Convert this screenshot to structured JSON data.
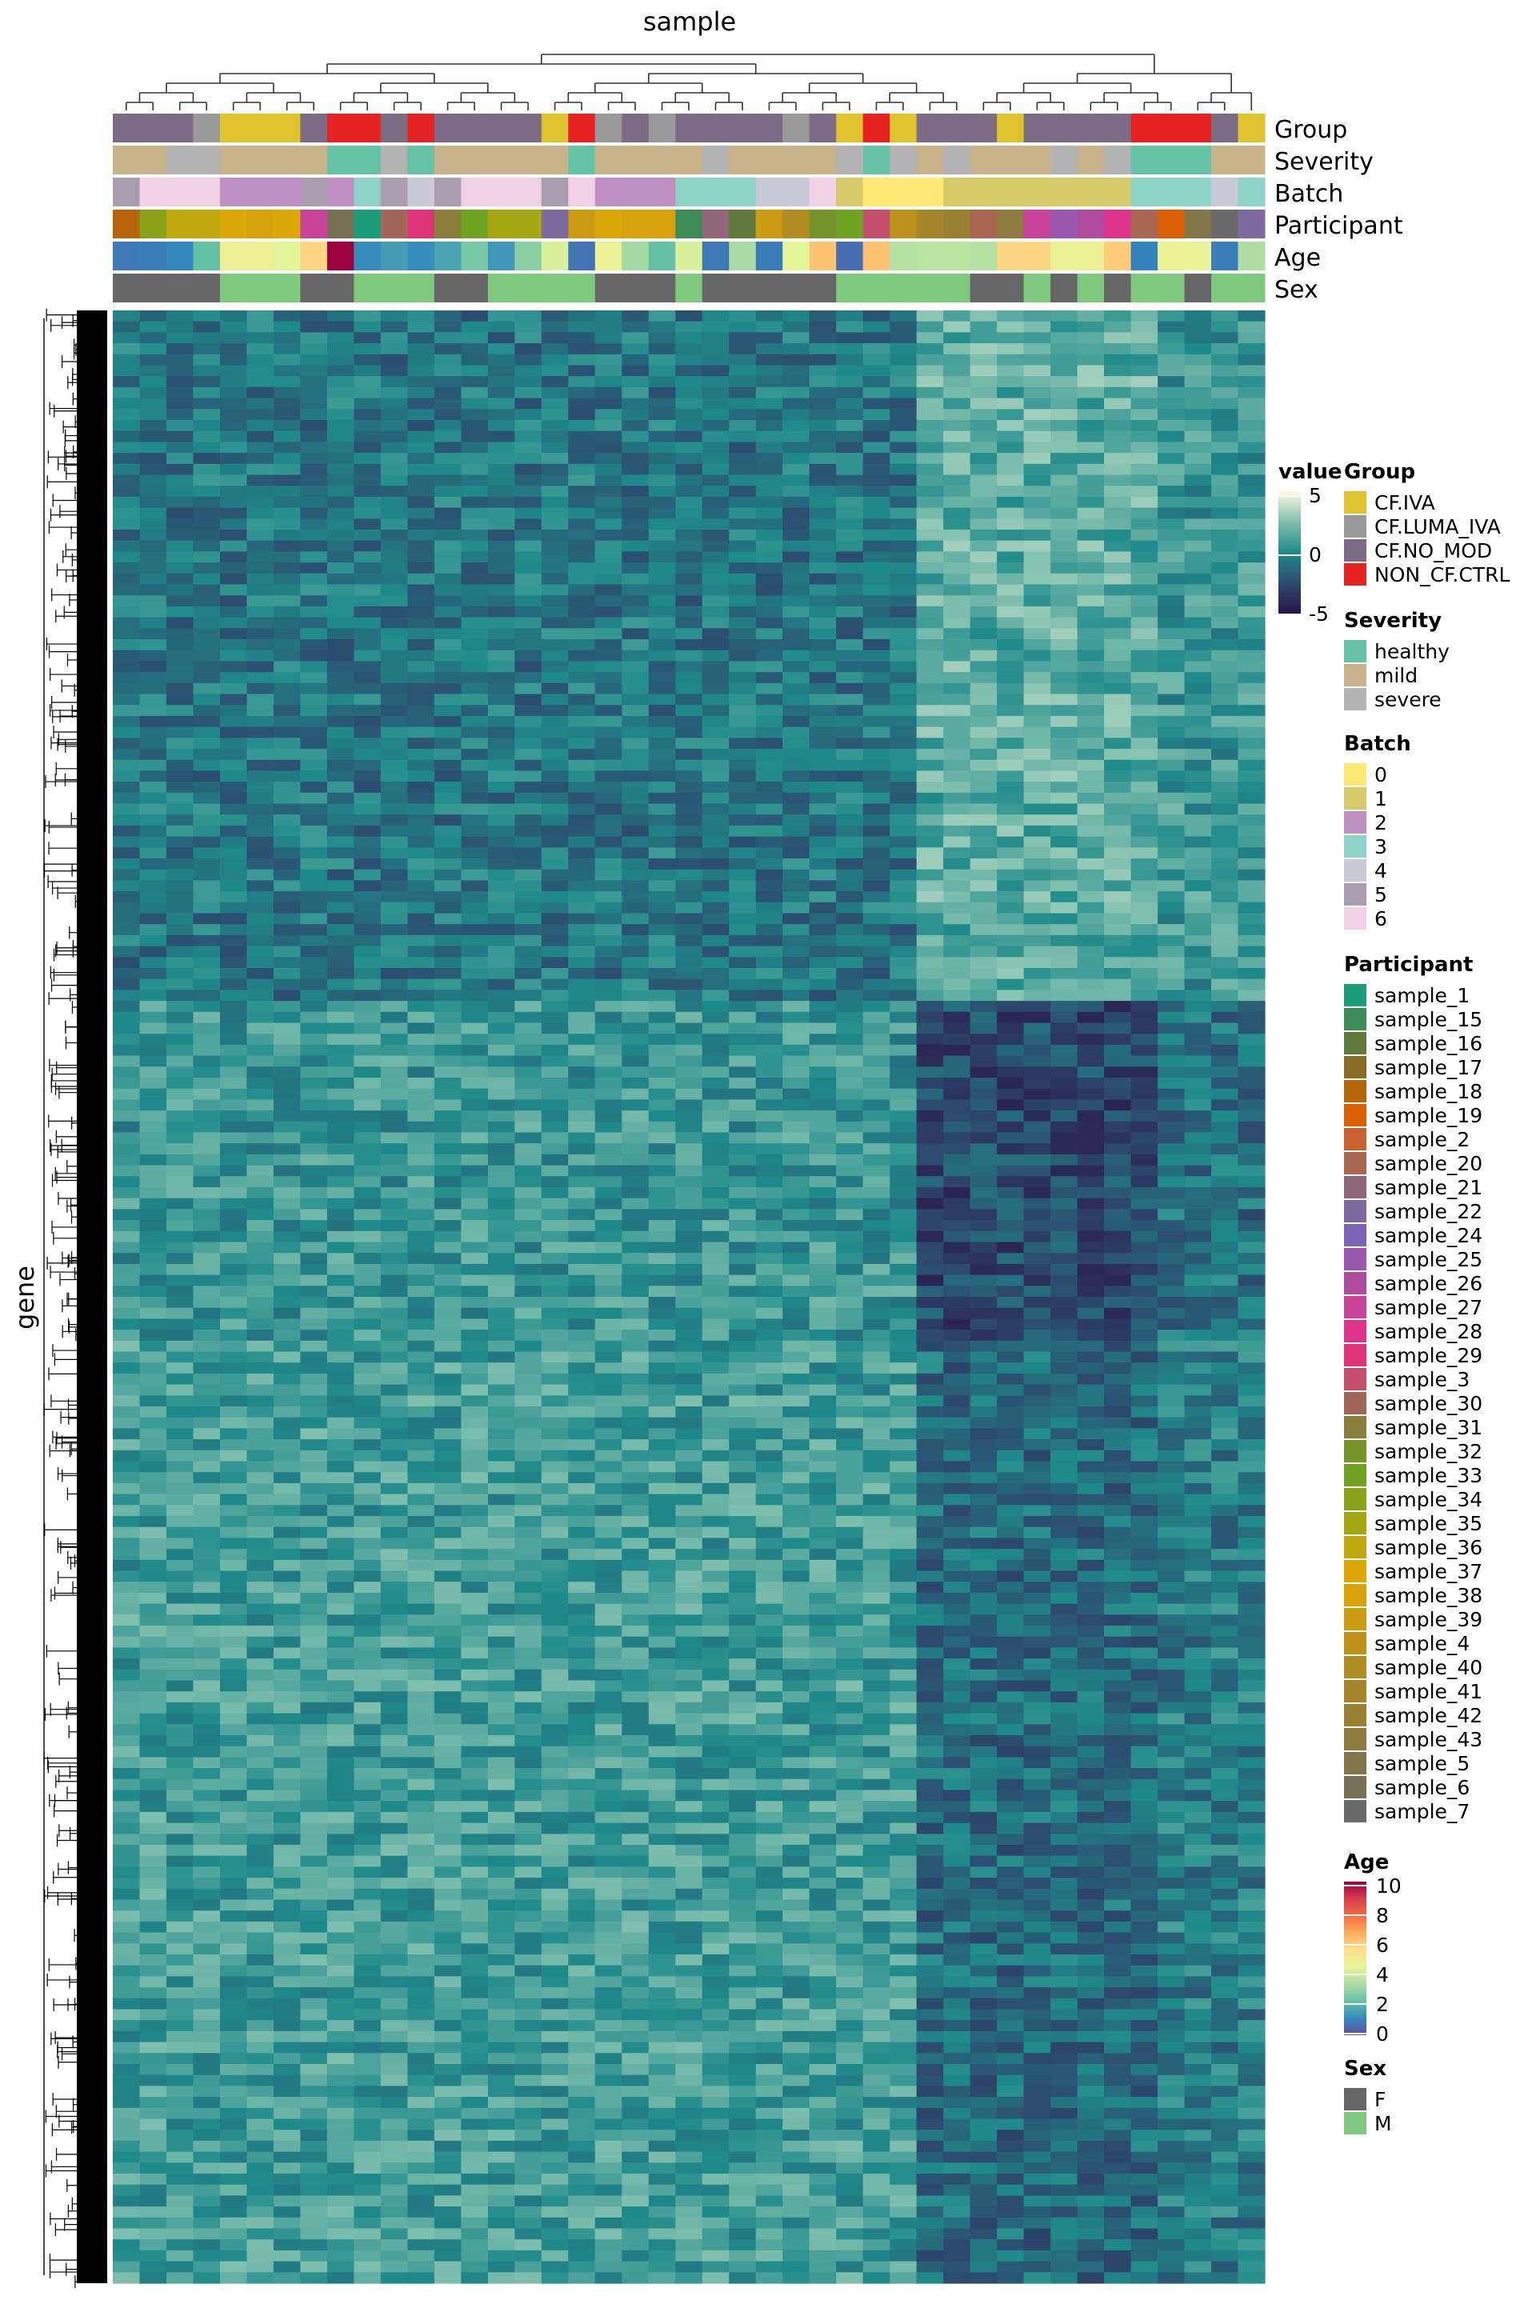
{
  "chart_data": {
    "type": "heatmap",
    "title": "sample",
    "xlabel": "sample",
    "ylabel": "gene",
    "value_legend": {
      "title": "value",
      "ticks": [
        5,
        0,
        -5
      ],
      "range": [
        -5,
        5
      ],
      "colors": [
        "#2a1347",
        "#2c4a6e",
        "#1f8a8a",
        "#7fbfae",
        "#fdfbe3"
      ]
    },
    "annotation_rows": [
      "Group",
      "Severity",
      "Batch",
      "Participant",
      "Age",
      "Sex"
    ],
    "columns": {
      "Group": [
        "CF.NO_MOD",
        "CF.NO_MOD",
        "CF.NO_MOD",
        "CF.LUMA_IVA",
        "CF.IVA",
        "CF.IVA",
        "CF.IVA",
        "CF.NO_MOD",
        "NON_CF.CTRL",
        "NON_CF.CTRL",
        "CF.NO_MOD",
        "NON_CF.CTRL",
        "CF.NO_MOD",
        "CF.NO_MOD",
        "CF.NO_MOD",
        "CF.NO_MOD",
        "CF.IVA",
        "NON_CF.CTRL",
        "CF.LUMA_IVA",
        "CF.NO_MOD",
        "CF.LUMA_IVA",
        "CF.NO_MOD",
        "CF.NO_MOD",
        "CF.NO_MOD",
        "CF.NO_MOD",
        "CF.LUMA_IVA",
        "CF.NO_MOD",
        "CF.IVA",
        "NON_CF.CTRL",
        "CF.IVA",
        "CF.NO_MOD",
        "CF.NO_MOD",
        "CF.NO_MOD",
        "CF.IVA",
        "CF.NO_MOD",
        "CF.NO_MOD",
        "CF.NO_MOD",
        "CF.NO_MOD",
        "NON_CF.CTRL",
        "NON_CF.CTRL",
        "NON_CF.CTRL",
        "CF.NO_MOD",
        "CF.IVA"
      ],
      "Severity": [
        "mild",
        "mild",
        "severe",
        "severe",
        "mild",
        "mild",
        "mild",
        "mild",
        "healthy",
        "healthy",
        "severe",
        "healthy",
        "mild",
        "mild",
        "mild",
        "mild",
        "mild",
        "healthy",
        "mild",
        "mild",
        "mild",
        "mild",
        "severe",
        "mild",
        "mild",
        "mild",
        "mild",
        "severe",
        "healthy",
        "severe",
        "mild",
        "severe",
        "mild",
        "mild",
        "mild",
        "severe",
        "mild",
        "severe",
        "healthy",
        "healthy",
        "healthy",
        "mild",
        "mild"
      ],
      "Batch": [
        "5",
        "6",
        "6",
        "6",
        "2",
        "2",
        "2",
        "5",
        "2",
        "3",
        "5",
        "4",
        "5",
        "6",
        "6",
        "6",
        "5",
        "6",
        "2",
        "2",
        "2",
        "3",
        "3",
        "3",
        "4",
        "4",
        "6",
        "1",
        "0",
        "0",
        "0",
        "1",
        "1",
        "1",
        "1",
        "1",
        "1",
        "1",
        "3",
        "3",
        "3",
        "4",
        "3"
      ],
      "Participant": [
        "sample_18",
        "sample_34",
        "sample_36",
        "sample_36",
        "sample_37",
        "sample_38",
        "sample_37",
        "sample_27",
        "sample_6",
        "sample_1",
        "sample_30",
        "sample_29",
        "sample_31",
        "sample_33",
        "sample_35",
        "sample_35",
        "sample_22",
        "sample_39",
        "sample_37",
        "sample_38",
        "sample_38",
        "sample_15",
        "sample_21",
        "sample_16",
        "sample_39",
        "sample_40",
        "sample_32",
        "sample_33",
        "sample_3",
        "sample_4",
        "sample_41",
        "sample_42",
        "sample_20",
        "sample_43",
        "sample_27",
        "sample_25",
        "sample_26",
        "sample_28",
        "sample_20",
        "sample_19",
        "sample_5",
        "sample_7",
        "sample_22"
      ],
      "Age": [
        0.8,
        0.9,
        1.1,
        2.2,
        4.8,
        4.8,
        4.4,
        5.8,
        10,
        1.2,
        1.5,
        1.2,
        1.6,
        2.5,
        1.4,
        2.8,
        4.2,
        0.7,
        4.7,
        3.2,
        2.2,
        4.2,
        0.8,
        3.3,
        0.9,
        4.4,
        6.2,
        0.6,
        6.2,
        3.5,
        3.6,
        3.6,
        3.5,
        5.8,
        5.8,
        4.7,
        4.7,
        6,
        1,
        4.7,
        4.6,
        0.9,
        3.4
      ],
      "Sex": [
        "F",
        "F",
        "F",
        "F",
        "M",
        "M",
        "M",
        "F",
        "F",
        "M",
        "M",
        "M",
        "F",
        "F",
        "M",
        "M",
        "M",
        "M",
        "F",
        "F",
        "F",
        "M",
        "F",
        "F",
        "F",
        "F",
        "F",
        "M",
        "M",
        "M",
        "M",
        "M",
        "F",
        "F",
        "M",
        "F",
        "M",
        "F",
        "M",
        "M",
        "F",
        "M",
        "M"
      ]
    },
    "legends": {
      "Group": [
        {
          "label": "CF.IVA",
          "color": "#e0c22e"
        },
        {
          "label": "CF.LUMA_IVA",
          "color": "#9a9a9a"
        },
        {
          "label": "CF.NO_MOD",
          "color": "#7d6b85"
        },
        {
          "label": "NON_CF.CTRL",
          "color": "#e52421"
        }
      ],
      "Severity": [
        {
          "label": "healthy",
          "color": "#66c2a5"
        },
        {
          "label": "mild",
          "color": "#c8b38a"
        },
        {
          "label": "severe",
          "color": "#b3b3b3"
        }
      ],
      "Batch": [
        {
          "label": "0",
          "color": "#ffe873"
        },
        {
          "label": "1",
          "color": "#d6c96a"
        },
        {
          "label": "2",
          "color": "#c190c2"
        },
        {
          "label": "3",
          "color": "#8dd3c7"
        },
        {
          "label": "4",
          "color": "#c9c9d8"
        },
        {
          "label": "5",
          "color": "#a89eaf"
        },
        {
          "label": "6",
          "color": "#f0d0e4"
        }
      ],
      "Participant": [
        {
          "label": "sample_1",
          "color": "#1b9e77"
        },
        {
          "label": "sample_15",
          "color": "#3d8c58"
        },
        {
          "label": "sample_16",
          "color": "#5f7a3a"
        },
        {
          "label": "sample_17",
          "color": "#8a6b24"
        },
        {
          "label": "sample_18",
          "color": "#b7650d"
        },
        {
          "label": "sample_19",
          "color": "#d95f02"
        },
        {
          "label": "sample_2",
          "color": "#c8622e"
        },
        {
          "label": "sample_20",
          "color": "#a96650"
        },
        {
          "label": "sample_21",
          "color": "#926679"
        },
        {
          "label": "sample_22",
          "color": "#7d6a9f"
        },
        {
          "label": "sample_24",
          "color": "#7b63b5"
        },
        {
          "label": "sample_25",
          "color": "#9c58ac"
        },
        {
          "label": "sample_26",
          "color": "#b04c9e"
        },
        {
          "label": "sample_27",
          "color": "#c8439a"
        },
        {
          "label": "sample_28",
          "color": "#dd358b"
        },
        {
          "label": "sample_29",
          "color": "#de3578"
        },
        {
          "label": "sample_3",
          "color": "#c44f6a"
        },
        {
          "label": "sample_30",
          "color": "#a0675a"
        },
        {
          "label": "sample_31",
          "color": "#8b7d3a"
        },
        {
          "label": "sample_32",
          "color": "#75952a"
        },
        {
          "label": "sample_33",
          "color": "#6fa321"
        },
        {
          "label": "sample_34",
          "color": "#8aa21a"
        },
        {
          "label": "sample_35",
          "color": "#a4a613"
        },
        {
          "label": "sample_36",
          "color": "#c0a90e"
        },
        {
          "label": "sample_37",
          "color": "#dca80a"
        },
        {
          "label": "sample_38",
          "color": "#d8a20c"
        },
        {
          "label": "sample_39",
          "color": "#cb9b13"
        },
        {
          "label": "sample_4",
          "color": "#bd931b"
        },
        {
          "label": "sample_40",
          "color": "#b08c23"
        },
        {
          "label": "sample_41",
          "color": "#a5862b"
        },
        {
          "label": "sample_42",
          "color": "#998133"
        },
        {
          "label": "sample_43",
          "color": "#8d7b3d"
        },
        {
          "label": "sample_5",
          "color": "#827548"
        },
        {
          "label": "sample_6",
          "color": "#787055"
        },
        {
          "label": "sample_7",
          "color": "#6a6a6a"
        }
      ],
      "Age": {
        "title": "Age",
        "ticks": [
          10,
          8,
          6,
          4,
          2,
          0
        ],
        "range": [
          0,
          10
        ],
        "colors": [
          "#5e4fa2",
          "#3288bd",
          "#66c2a5",
          "#abdda4",
          "#e6f598",
          "#fee08b",
          "#fdae61",
          "#f46d43",
          "#d53e4f",
          "#9e0142"
        ]
      },
      "Sex": [
        {
          "label": "F",
          "color": "#666666"
        },
        {
          "label": "M",
          "color": "#7fc97f"
        }
      ]
    }
  }
}
